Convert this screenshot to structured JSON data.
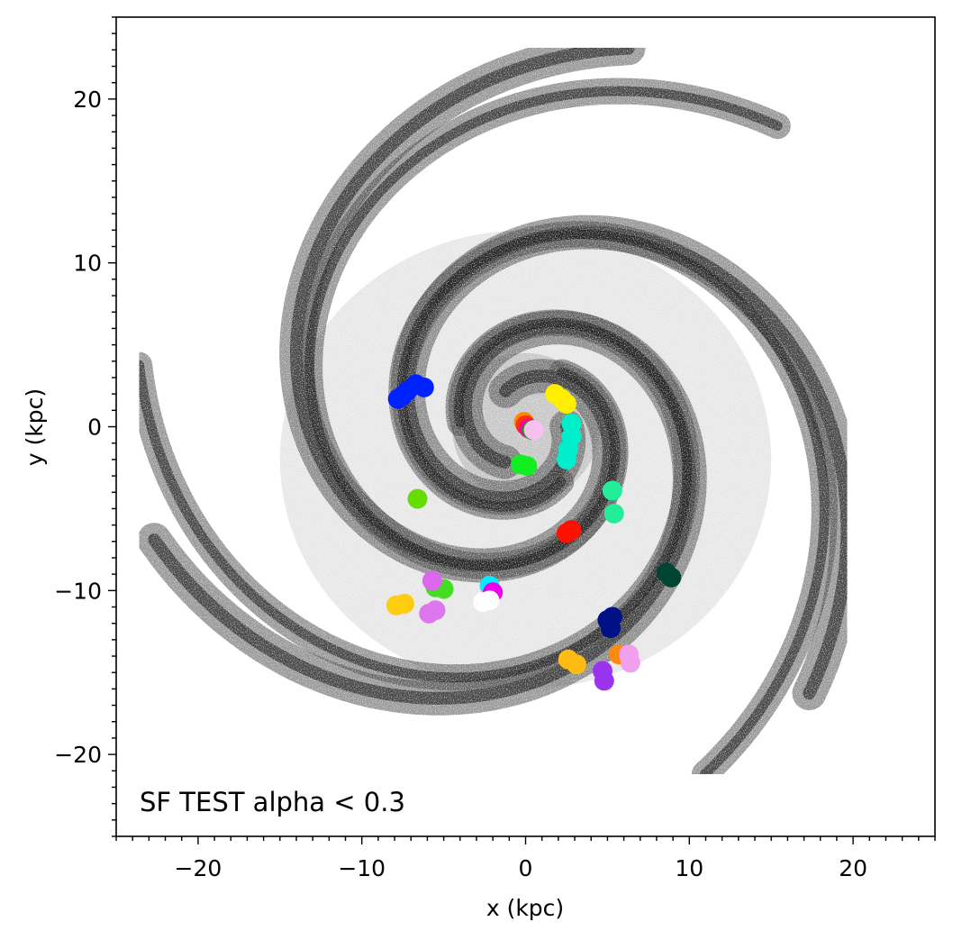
{
  "chart_data": {
    "type": "scatter",
    "title": "",
    "xlabel": "x (kpc)",
    "ylabel": "y (kpc)",
    "xlim": [
      -25,
      25
    ],
    "ylim": [
      -25,
      25
    ],
    "x_ticks": [
      -20,
      -10,
      0,
      10,
      20
    ],
    "y_ticks": [
      -20,
      -10,
      0,
      10,
      20
    ],
    "x_tick_labels": [
      "−20",
      "−10",
      "0",
      "10",
      "20"
    ],
    "y_tick_labels": [
      "−20",
      "−10",
      "0",
      "10",
      "20"
    ],
    "minor_tick_step": 1,
    "grid": false,
    "annotation": "SF TEST alpha < 0.3",
    "background_map": {
      "description_kind": "grayscale gas density map of a spiral galaxy",
      "arms": [
        {
          "r0": 2.5,
          "theta0": 0.0,
          "pitch": 0.32,
          "turns": 3.2,
          "width": 1.3
        },
        {
          "r0": 2.5,
          "theta0": 2.1,
          "pitch": 0.32,
          "turns": 3.0,
          "width": 1.3
        },
        {
          "r0": 2.5,
          "theta0": 4.2,
          "pitch": 0.32,
          "turns": 3.1,
          "width": 1.3
        },
        {
          "r0": 4.0,
          "theta0": 1.0,
          "pitch": 0.28,
          "turns": 2.4,
          "width": 1.0
        },
        {
          "r0": 4.0,
          "theta0": 3.2,
          "pitch": 0.28,
          "turns": 2.3,
          "width": 1.0
        },
        {
          "r0": 4.0,
          "theta0": 5.3,
          "pitch": 0.28,
          "turns": 2.2,
          "width": 1.0
        }
      ]
    },
    "clusters": [
      {
        "color": "#0022ff",
        "points": [
          [
            -7.8,
            1.7
          ],
          [
            -7.2,
            2.2
          ],
          [
            -6.7,
            2.6
          ],
          [
            -6.2,
            2.4
          ],
          [
            -7.5,
            1.9
          ]
        ]
      },
      {
        "color": "#ffee00",
        "points": [
          [
            1.8,
            2.0
          ],
          [
            2.2,
            1.7
          ],
          [
            2.5,
            1.4
          ]
        ]
      },
      {
        "color": "#00eecc",
        "points": [
          [
            2.8,
            0.2
          ],
          [
            2.8,
            -0.6
          ],
          [
            2.6,
            -1.4
          ],
          [
            2.5,
            -2.0
          ]
        ]
      },
      {
        "color": "#ff8800",
        "points": [
          [
            -0.1,
            0.3
          ]
        ]
      },
      {
        "color": "#ff3300",
        "points": [
          [
            0.0,
            0.1
          ]
        ]
      },
      {
        "color": "#ff00aa",
        "points": [
          [
            0.2,
            -0.1
          ]
        ]
      },
      {
        "color": "#00aa00",
        "points": [
          [
            0.4,
            -0.2
          ]
        ]
      },
      {
        "color": "#f8c0ee",
        "points": [
          [
            0.5,
            -0.2
          ]
        ]
      },
      {
        "color": "#11ee22",
        "points": [
          [
            -0.3,
            -2.3
          ],
          [
            0.1,
            -2.4
          ]
        ]
      },
      {
        "color": "#22ee99",
        "points": [
          [
            5.3,
            -3.9
          ],
          [
            5.4,
            -5.3
          ]
        ]
      },
      {
        "color": "#66dd00",
        "points": [
          [
            -6.6,
            -4.4
          ]
        ]
      },
      {
        "color": "#ff1100",
        "points": [
          [
            2.5,
            -6.5
          ],
          [
            2.8,
            -6.3
          ]
        ]
      },
      {
        "color": "#004433",
        "points": [
          [
            8.6,
            -8.9
          ],
          [
            8.9,
            -9.2
          ]
        ]
      },
      {
        "color": "#00eeff",
        "points": [
          [
            -2.2,
            -9.7
          ]
        ]
      },
      {
        "color": "#ee00ee",
        "points": [
          [
            -2.0,
            -10.1
          ]
        ]
      },
      {
        "color": "#ffffff",
        "points": [
          [
            -2.2,
            -10.6
          ],
          [
            -2.6,
            -10.7
          ]
        ]
      },
      {
        "color": "#44dd22",
        "points": [
          [
            -5.5,
            -9.8
          ],
          [
            -5.0,
            -9.9
          ]
        ]
      },
      {
        "color": "#dd66ee",
        "points": [
          [
            -5.7,
            -9.4
          ]
        ]
      },
      {
        "color": "#ffcc11",
        "points": [
          [
            -7.9,
            -10.9
          ],
          [
            -7.4,
            -10.8
          ]
        ]
      },
      {
        "color": "#dd77ee",
        "points": [
          [
            -5.9,
            -11.4
          ],
          [
            -5.5,
            -11.2
          ]
        ]
      },
      {
        "color": "#001188",
        "points": [
          [
            5.0,
            -11.8
          ],
          [
            5.3,
            -11.6
          ],
          [
            5.2,
            -12.3
          ]
        ]
      },
      {
        "color": "#ffbb11",
        "points": [
          [
            2.6,
            -14.2
          ],
          [
            3.1,
            -14.5
          ]
        ]
      },
      {
        "color": "#ff8811",
        "points": [
          [
            5.7,
            -13.9
          ]
        ]
      },
      {
        "color": "#f0a0ee",
        "points": [
          [
            6.3,
            -13.9
          ],
          [
            6.4,
            -14.4
          ]
        ]
      },
      {
        "color": "#9933ee",
        "points": [
          [
            4.7,
            -14.9
          ],
          [
            4.8,
            -15.5
          ]
        ]
      }
    ]
  }
}
